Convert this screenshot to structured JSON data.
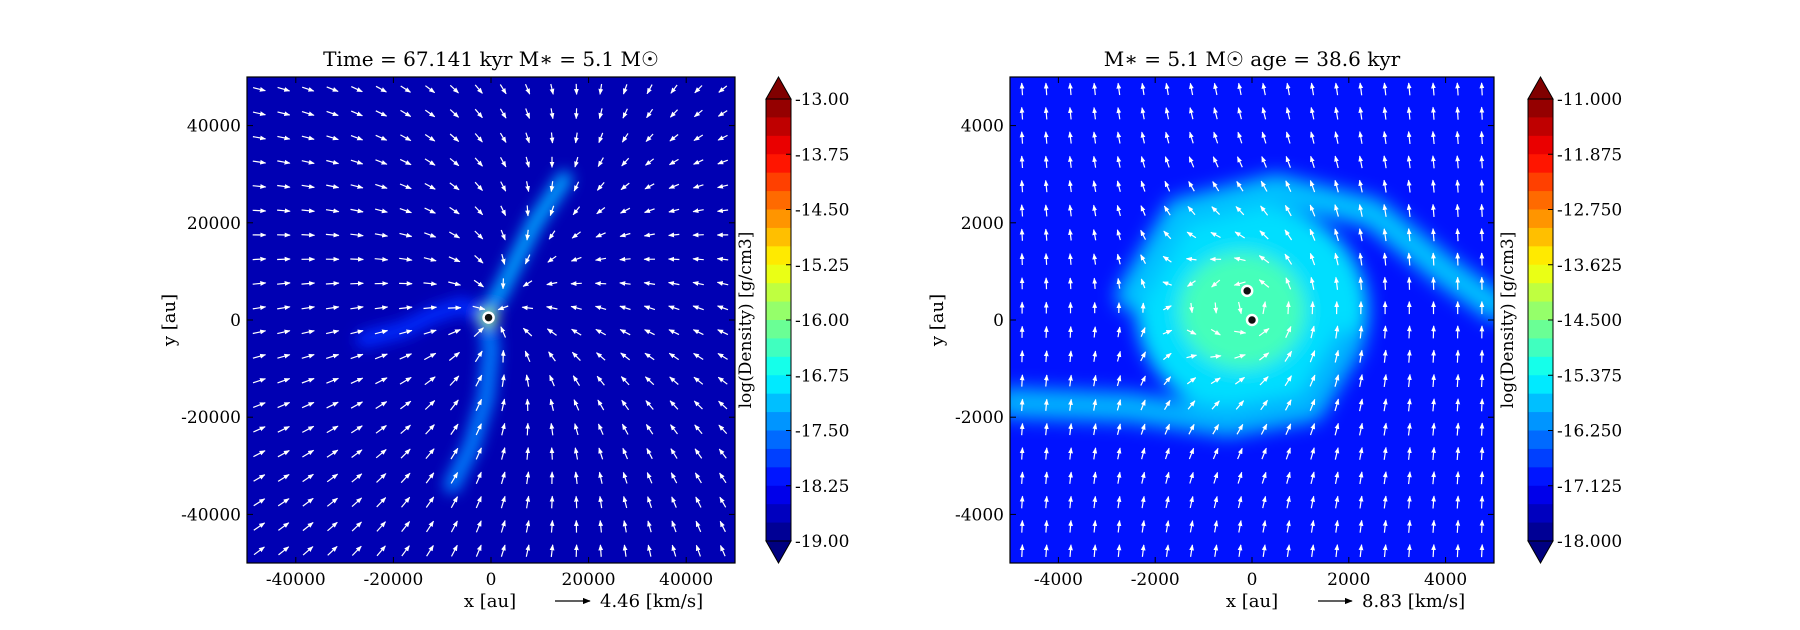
{
  "chart_data": [
    {
      "type": "heatmap",
      "title": "Time = 67.141 kyr    M$_*$ = 5.1 M$_\\odot$",
      "title_plain": "Time = 67.141 kyr    M∗ = 5.1 M☉",
      "xlabel": "x [au]",
      "ylabel": "y [au]",
      "xlim": [
        -50000,
        50000
      ],
      "ylim": [
        -50000,
        50000
      ],
      "xticks": [
        -40000,
        -20000,
        0,
        20000,
        40000
      ],
      "yticks": [
        -40000,
        -20000,
        0,
        20000,
        40000
      ],
      "xtick_labels": [
        "-40000",
        "-20000",
        "0",
        "20000",
        "40000"
      ],
      "ytick_labels": [
        "-40000",
        "-20000",
        "0",
        "20000",
        "40000"
      ],
      "quiver_key": "4.46 [km/s]",
      "colorbar": {
        "label": "log(Density) [g/cm3]",
        "range": [
          -19.0,
          -13.0
        ],
        "ticks": [
          "-13.00",
          "-13.75",
          "-14.50",
          "-15.25",
          "-16.00",
          "-16.75",
          "-17.50",
          "-18.25",
          "-19.00"
        ],
        "extend": "both"
      },
      "background_log_density": -18.7,
      "sinks": [
        {
          "x": -500,
          "y": 500
        }
      ],
      "features": [
        {
          "kind": "filament",
          "points": [
            [
              -1000,
              1000
            ],
            [
              2000,
              6000
            ],
            [
              5000,
              12000
            ],
            [
              9000,
              20000
            ],
            [
              15000,
              29000
            ]
          ],
          "log_density": -17.3
        },
        {
          "kind": "filament",
          "points": [
            [
              -1000,
              1000
            ],
            [
              0,
              -6000
            ],
            [
              -1000,
              -16000
            ],
            [
              -4000,
              -26000
            ],
            [
              -8000,
              -34000
            ]
          ],
          "log_density": -17.5
        },
        {
          "kind": "filament",
          "points": [
            [
              -1000,
              1000
            ],
            [
              -6000,
              3000
            ],
            [
              -12000,
              1000
            ],
            [
              -18000,
              -2000
            ],
            [
              -26000,
              -4000
            ]
          ],
          "log_density": -18.0
        },
        {
          "kind": "core",
          "x": -500,
          "y": 500,
          "log_density": -15.8
        }
      ]
    },
    {
      "type": "heatmap",
      "title": "M$_*$ = 5.1 M$_\\odot$          age = 38.6 kyr",
      "title_plain": "M∗ = 5.1 M☉          age = 38.6 kyr",
      "xlabel": "x [au]",
      "ylabel": "y [au]",
      "xlim": [
        -5000,
        5000
      ],
      "ylim": [
        -5000,
        5000
      ],
      "xticks": [
        -4000,
        -2000,
        0,
        2000,
        4000
      ],
      "yticks": [
        -4000,
        -2000,
        0,
        2000,
        4000
      ],
      "xtick_labels": [
        "-4000",
        "-2000",
        "0",
        "2000",
        "4000"
      ],
      "ytick_labels": [
        "-4000",
        "-2000",
        "0",
        "2000",
        "4000"
      ],
      "quiver_key": "8.83 [km/s]",
      "colorbar": {
        "label": "log(Density) [g/cm3]",
        "range": [
          -18.0,
          -11.0
        ],
        "ticks": [
          "-11.000",
          "-11.875",
          "-12.750",
          "-13.625",
          "-14.500",
          "-15.375",
          "-16.250",
          "-17.125",
          "-18.000"
        ],
        "extend": "both"
      },
      "background_log_density": -17.0,
      "sinks": [
        {
          "x": -100,
          "y": 600
        },
        {
          "x": 0,
          "y": 0
        }
      ],
      "features": [
        {
          "kind": "disk",
          "x": 0,
          "y": 200,
          "rx": 2400,
          "ry": 2200,
          "log_density": -15.6
        },
        {
          "kind": "disk",
          "x": -200,
          "y": 200,
          "rx": 1300,
          "ry": 1200,
          "log_density": -14.9
        },
        {
          "kind": "spiral_arm",
          "points": [
            [
              -2500,
              500
            ],
            [
              -1500,
              2200
            ],
            [
              500,
              2700
            ],
            [
              2500,
              2200
            ],
            [
              4000,
              1000
            ],
            [
              5000,
              300
            ]
          ],
          "log_density": -15.8
        },
        {
          "kind": "spiral_arm",
          "points": [
            [
              2000,
              -500
            ],
            [
              1200,
              -1800
            ],
            [
              -500,
              -2100
            ],
            [
              -2500,
              -1800
            ],
            [
              -5000,
              -1700
            ]
          ],
          "log_density": -15.9
        }
      ]
    }
  ]
}
